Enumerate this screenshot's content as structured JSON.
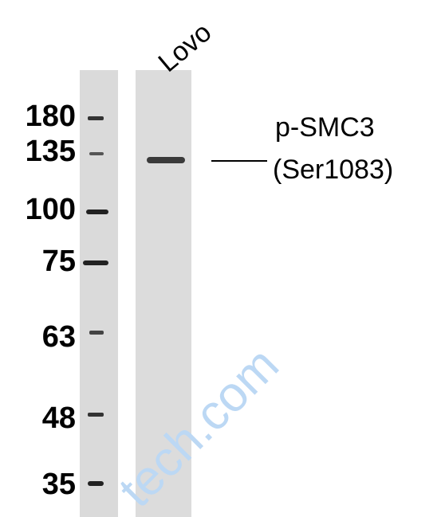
{
  "lane_label": "Lovo",
  "markers": [
    "180",
    "135",
    "100",
    "75",
    "63",
    "48",
    "35"
  ],
  "band_label": {
    "line1": "p-SMC3",
    "line2": "(Ser1083)"
  },
  "watermark": "tech.com"
}
